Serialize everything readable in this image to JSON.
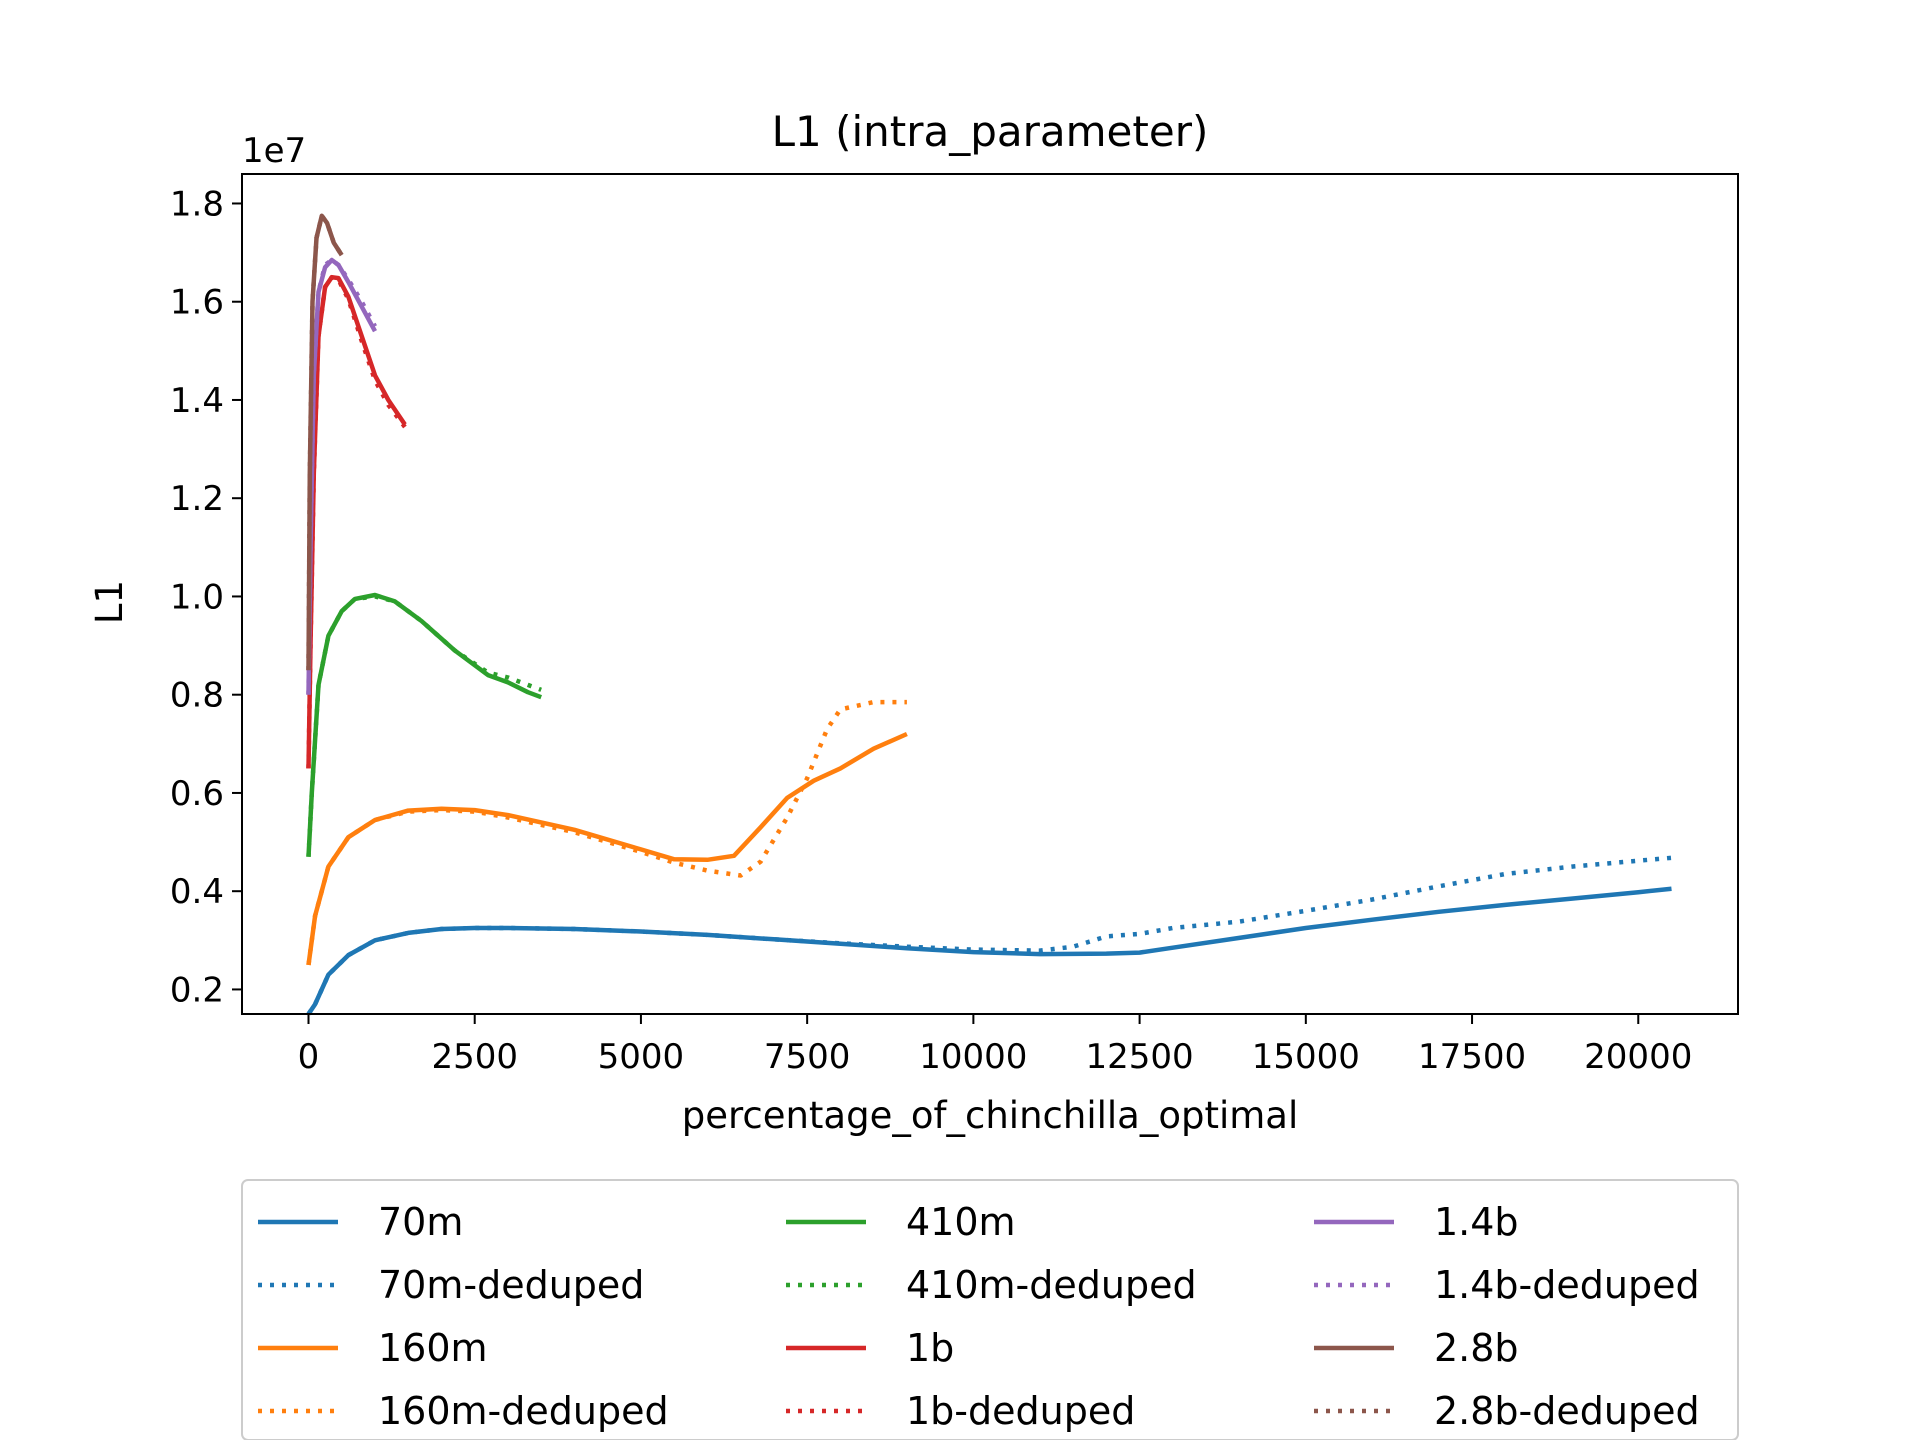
{
  "chart_data": {
    "type": "line",
    "title": "L1 (intra_parameter)",
    "xlabel": "percentage_of_chinchilla_optimal",
    "ylabel": "L1",
    "y_offset_label": "1e7",
    "y_scale_factor": 10000000,
    "xlim": [
      -1000,
      21500
    ],
    "ylim": [
      1500000,
      18600000
    ],
    "xticks": [
      0,
      2500,
      5000,
      7500,
      10000,
      12500,
      15000,
      17500,
      20000
    ],
    "xtick_labels": [
      "0",
      "2500",
      "5000",
      "7500",
      "10000",
      "12500",
      "15000",
      "17500",
      "20000"
    ],
    "yticks": [
      2000000,
      4000000,
      6000000,
      8000000,
      10000000,
      12000000,
      14000000,
      16000000,
      18000000
    ],
    "ytick_labels": [
      "0.2",
      "0.4",
      "0.6",
      "0.8",
      "1.0",
      "1.2",
      "1.4",
      "1.6",
      "1.8"
    ],
    "grid": false,
    "legend_placement": "below",
    "series": [
      {
        "name": "70m",
        "color": "#1f77b4",
        "style": "solid",
        "x": [
          0,
          100,
          300,
          600,
          1000,
          1500,
          2000,
          2500,
          3000,
          4000,
          5000,
          6000,
          7000,
          8000,
          9000,
          10000,
          11000,
          12000,
          12500,
          13000,
          14000,
          15000,
          16000,
          17000,
          18000,
          19000,
          20000,
          20500
        ],
        "y": [
          1500000,
          1700000,
          2300000,
          2700000,
          3000000,
          3150000,
          3230000,
          3250000,
          3250000,
          3230000,
          3180000,
          3110000,
          3020000,
          2930000,
          2840000,
          2760000,
          2720000,
          2730000,
          2750000,
          2850000,
          3050000,
          3250000,
          3420000,
          3580000,
          3720000,
          3850000,
          3980000,
          4050000
        ]
      },
      {
        "name": "70m-deduped",
        "color": "#1f77b4",
        "style": "dotted",
        "x": [
          0,
          100,
          300,
          600,
          1000,
          1500,
          2000,
          2500,
          3000,
          4000,
          5000,
          6000,
          7000,
          8000,
          9000,
          10000,
          11000,
          11500,
          12000,
          12500,
          13000,
          14000,
          15000,
          16000,
          17000,
          18000,
          19000,
          20000,
          20500
        ],
        "y": [
          1500000,
          1700000,
          2300000,
          2700000,
          3000000,
          3150000,
          3230000,
          3250000,
          3250000,
          3230000,
          3180000,
          3110000,
          3020000,
          2940000,
          2870000,
          2810000,
          2790000,
          2870000,
          3080000,
          3130000,
          3250000,
          3380000,
          3600000,
          3830000,
          4100000,
          4350000,
          4500000,
          4620000,
          4680000
        ]
      },
      {
        "name": "160m",
        "color": "#ff7f0e",
        "style": "solid",
        "x": [
          0,
          100,
          300,
          600,
          1000,
          1500,
          2000,
          2500,
          3000,
          4000,
          5000,
          5500,
          6000,
          6400,
          6800,
          7200,
          7600,
          8000,
          8500,
          9000
        ],
        "y": [
          2500000,
          3500000,
          4500000,
          5100000,
          5450000,
          5640000,
          5680000,
          5650000,
          5550000,
          5250000,
          4850000,
          4650000,
          4640000,
          4720000,
          5300000,
          5900000,
          6250000,
          6500000,
          6900000,
          7200000
        ]
      },
      {
        "name": "160m-deduped",
        "color": "#ff7f0e",
        "style": "dotted",
        "x": [
          0,
          100,
          300,
          600,
          1000,
          1500,
          2000,
          2500,
          3000,
          4000,
          5000,
          5500,
          6000,
          6500,
          6800,
          7200,
          7500,
          7800,
          8000,
          8500,
          9000
        ],
        "y": [
          2500000,
          3500000,
          4500000,
          5100000,
          5450000,
          5620000,
          5650000,
          5620000,
          5500000,
          5200000,
          4800000,
          4580000,
          4420000,
          4320000,
          4600000,
          5500000,
          6300000,
          7300000,
          7700000,
          7850000,
          7850000
        ]
      },
      {
        "name": "410m",
        "color": "#2ca02c",
        "style": "solid",
        "x": [
          0,
          50,
          150,
          300,
          500,
          700,
          1000,
          1300,
          1700,
          2200,
          2700,
          3000,
          3300,
          3500
        ],
        "y": [
          4700000,
          6000000,
          8200000,
          9200000,
          9700000,
          9950000,
          10030000,
          9900000,
          9500000,
          8900000,
          8400000,
          8250000,
          8050000,
          7950000
        ]
      },
      {
        "name": "410m-deduped",
        "color": "#2ca02c",
        "style": "dotted",
        "x": [
          0,
          50,
          150,
          300,
          500,
          700,
          1000,
          1300,
          1700,
          2200,
          2700,
          3000,
          3300,
          3500
        ],
        "y": [
          4700000,
          6000000,
          8200000,
          9200000,
          9700000,
          9950000,
          10000000,
          9900000,
          9500000,
          8900000,
          8450000,
          8350000,
          8200000,
          8100000
        ]
      },
      {
        "name": "1b",
        "color": "#d62728",
        "style": "solid",
        "x": [
          0,
          30,
          80,
          150,
          250,
          350,
          450,
          600,
          800,
          1000,
          1200,
          1450
        ],
        "y": [
          6500000,
          9000000,
          12500000,
          15300000,
          16300000,
          16500000,
          16480000,
          16100000,
          15300000,
          14500000,
          14000000,
          13500000
        ]
      },
      {
        "name": "1b-deduped",
        "color": "#d62728",
        "style": "dotted",
        "x": [
          0,
          30,
          80,
          150,
          250,
          350,
          450,
          600,
          800,
          1000,
          1200,
          1450
        ],
        "y": [
          6500000,
          9000000,
          12500000,
          15300000,
          16300000,
          16500000,
          16450000,
          16050000,
          15200000,
          14400000,
          13900000,
          13450000
        ]
      },
      {
        "name": "1.4b",
        "color": "#9467bd",
        "style": "solid",
        "x": [
          0,
          30,
          80,
          150,
          250,
          350,
          450,
          600,
          800,
          1000
        ],
        "y": [
          8000000,
          11000000,
          14500000,
          16200000,
          16700000,
          16850000,
          16750000,
          16400000,
          15900000,
          15400000
        ]
      },
      {
        "name": "1.4b-deduped",
        "color": "#9467bd",
        "style": "dotted",
        "x": [
          0,
          30,
          80,
          150,
          250,
          350,
          450,
          600,
          800,
          1000
        ],
        "y": [
          8000000,
          11000000,
          14500000,
          16200000,
          16750000,
          16850000,
          16750000,
          16450000,
          16000000,
          15500000
        ]
      },
      {
        "name": "2.8b",
        "color": "#8c564b",
        "style": "solid",
        "x": [
          0,
          20,
          60,
          120,
          200,
          280,
          380,
          500
        ],
        "y": [
          8500000,
          12500000,
          16000000,
          17300000,
          17750000,
          17600000,
          17200000,
          16950000
        ]
      },
      {
        "name": "2.8b-deduped",
        "color": "#8c564b",
        "style": "dotted",
        "x": [
          0,
          20,
          60,
          120,
          200,
          280,
          380,
          500
        ],
        "y": [
          8500000,
          12500000,
          16000000,
          17300000,
          17750000,
          17600000,
          17200000,
          16950000
        ]
      }
    ]
  }
}
